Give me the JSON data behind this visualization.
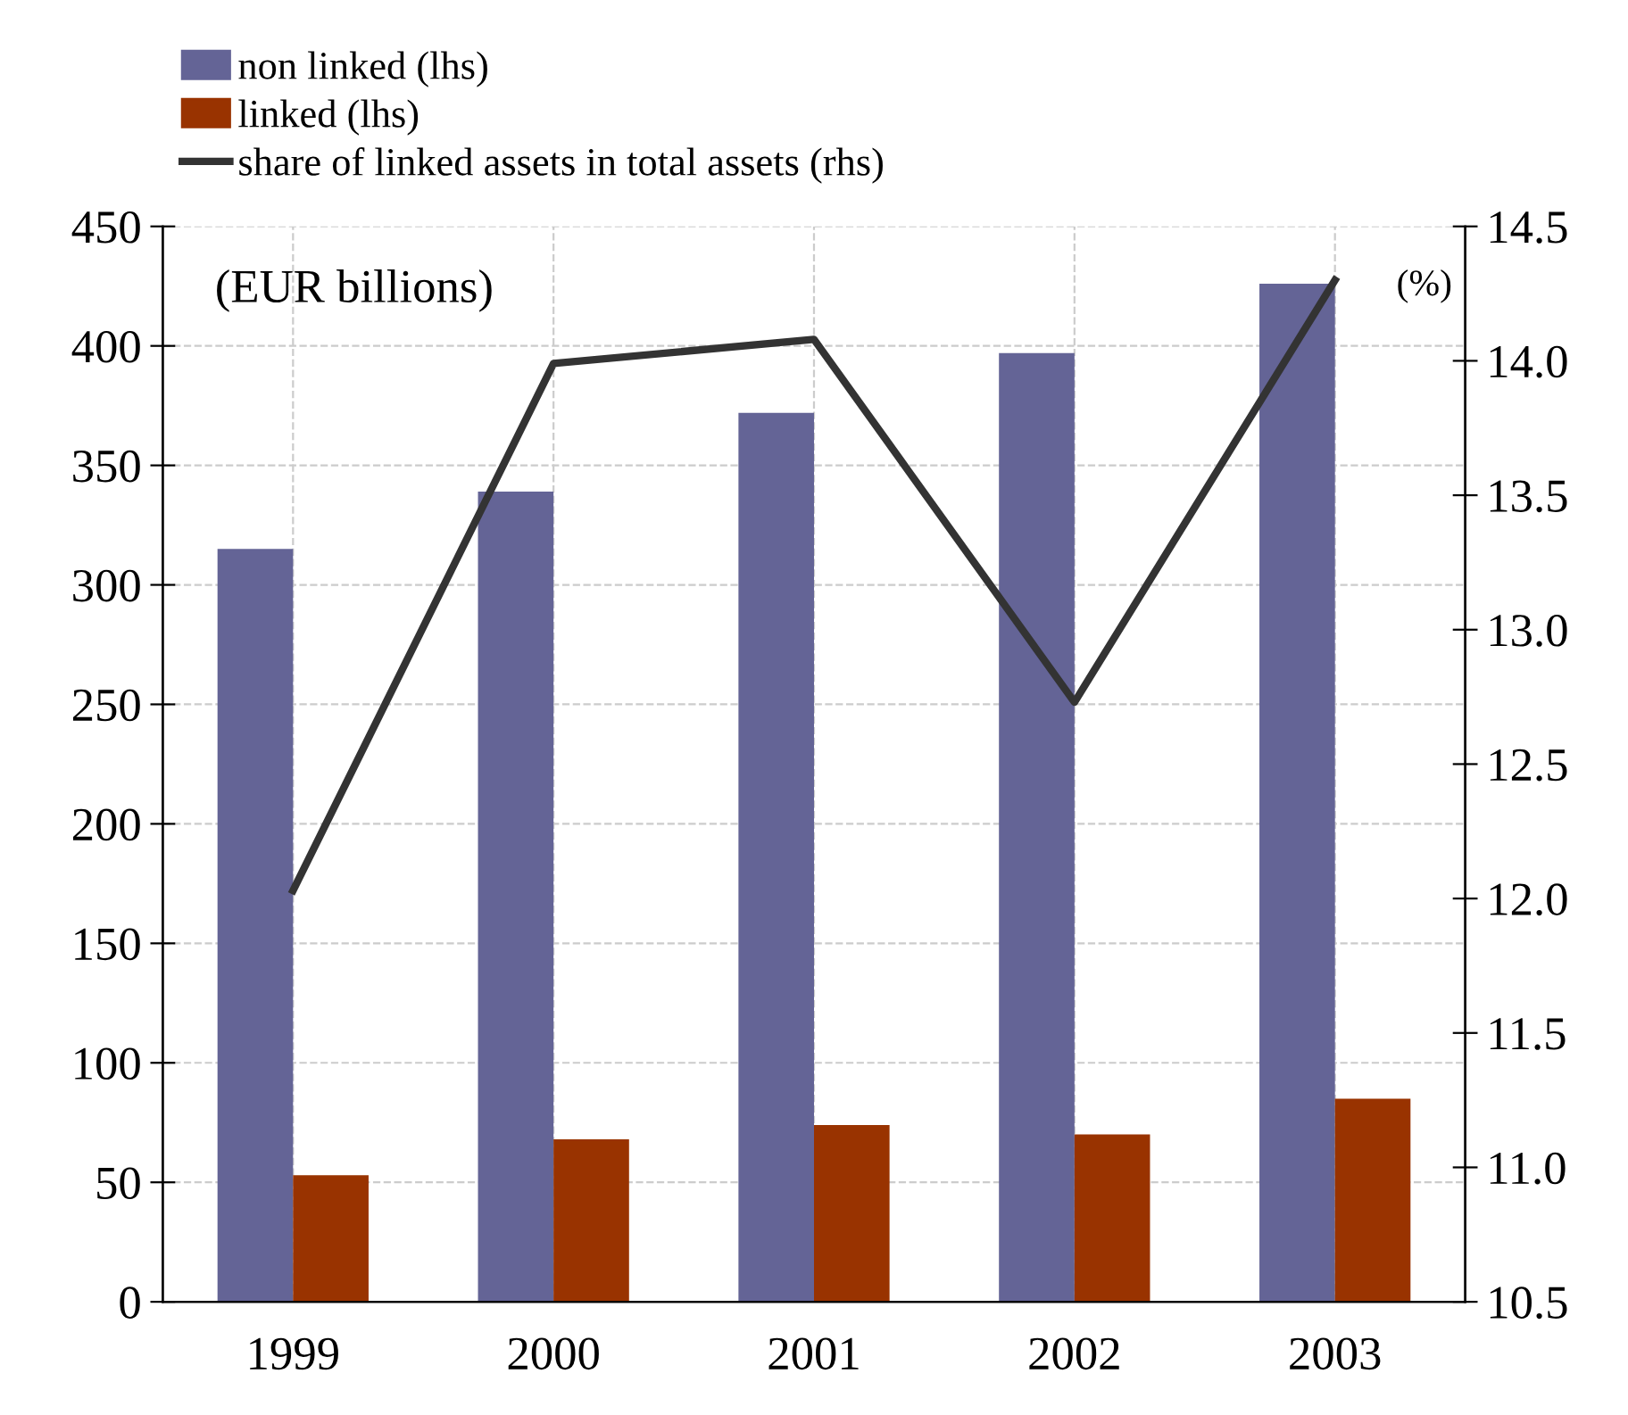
{
  "chart_data": {
    "type": "bar",
    "categories": [
      "1999",
      "2000",
      "2001",
      "2002",
      "2003"
    ],
    "series": [
      {
        "name": "non linked (lhs)",
        "color": "#646496",
        "values": [
          315,
          339,
          372,
          397,
          426
        ]
      },
      {
        "name": "linked (lhs)",
        "color": "#993300",
        "values": [
          53,
          68,
          74,
          70,
          85
        ]
      },
      {
        "name": "share of linked assets in total assets (rhs)",
        "type": "line",
        "axis": "y2",
        "color": "#333333",
        "values": [
          12.03,
          13.99,
          14.08,
          12.73,
          14.3
        ]
      }
    ],
    "ylim": [
      0,
      450
    ],
    "yticks": [
      0,
      50,
      100,
      150,
      200,
      250,
      300,
      350,
      400,
      450
    ],
    "y2lim": [
      10.5,
      14.5
    ],
    "y2ticks": [
      {
        "value": 10.5,
        "label": "10.5"
      },
      {
        "value": 11,
        "label": "11.0"
      },
      {
        "value": 11.5,
        "label": "11.5"
      },
      {
        "value": 12,
        "label": "12.0"
      },
      {
        "value": 12.5,
        "label": "12.5"
      },
      {
        "value": 13,
        "label": "13.0"
      },
      {
        "value": 13.5,
        "label": "13.5"
      },
      {
        "value": 14,
        "label": "14.0"
      },
      {
        "value": 14.5,
        "label": "14.5"
      }
    ],
    "annotations": [
      "(EUR billions)",
      "(%)"
    ],
    "grid": true,
    "legend": "top left",
    "marker": "none",
    "line_style": "solid"
  }
}
